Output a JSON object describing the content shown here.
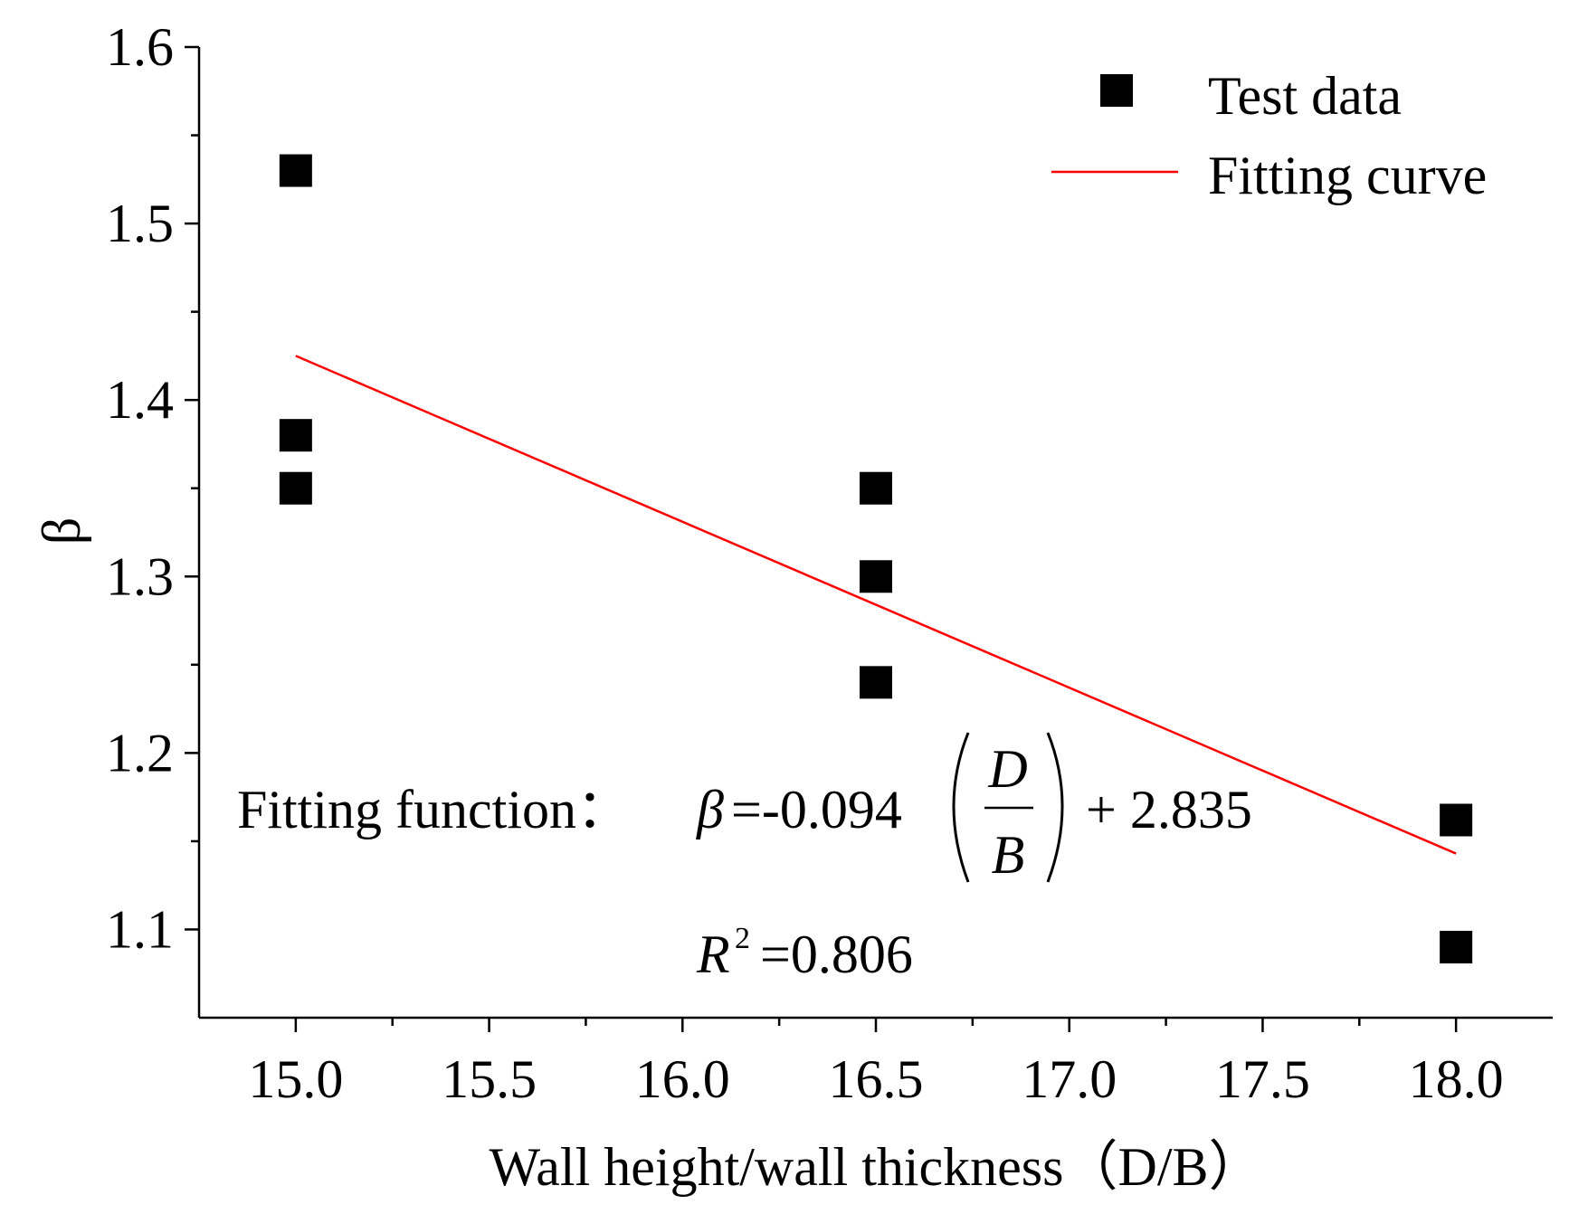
{
  "chart_data": {
    "type": "scatter",
    "title": "",
    "xlabel": "Wall height/wall thickness（D/B）",
    "ylabel": "β",
    "xlim": [
      14.75,
      18.25
    ],
    "ylim": [
      1.05,
      1.6
    ],
    "xticks": [
      "15.0",
      "15.5",
      "16.0",
      "16.5",
      "17.0",
      "17.5",
      "18.0"
    ],
    "yticks": [
      "1.1",
      "1.2",
      "1.3",
      "1.4",
      "1.5",
      "1.6"
    ],
    "grid": false,
    "legend_position": "top-right",
    "series": [
      {
        "name": "Test data",
        "kind": "scatter",
        "marker": "square",
        "color": "#000000",
        "points": [
          {
            "x": 15.0,
            "y": 1.53
          },
          {
            "x": 15.0,
            "y": 1.38
          },
          {
            "x": 15.0,
            "y": 1.35
          },
          {
            "x": 16.5,
            "y": 1.35
          },
          {
            "x": 16.5,
            "y": 1.3
          },
          {
            "x": 16.5,
            "y": 1.24
          },
          {
            "x": 18.0,
            "y": 1.162
          },
          {
            "x": 18.0,
            "y": 1.09
          }
        ]
      },
      {
        "name": "Fitting curve",
        "kind": "line",
        "color": "#ff0000",
        "slope": -0.094,
        "intercept": 2.835,
        "x_range": [
          15.0,
          18.0
        ]
      }
    ],
    "annotations": {
      "fit_label": "Fitting function：",
      "beta_symbol": "β",
      "equals_coef": "=-0.094",
      "frac_num": "D",
      "frac_den": "B",
      "plus_const": "+ 2.835",
      "r2_letter": "R",
      "r2_sup": "2",
      "r2_value": "=0.806"
    }
  }
}
